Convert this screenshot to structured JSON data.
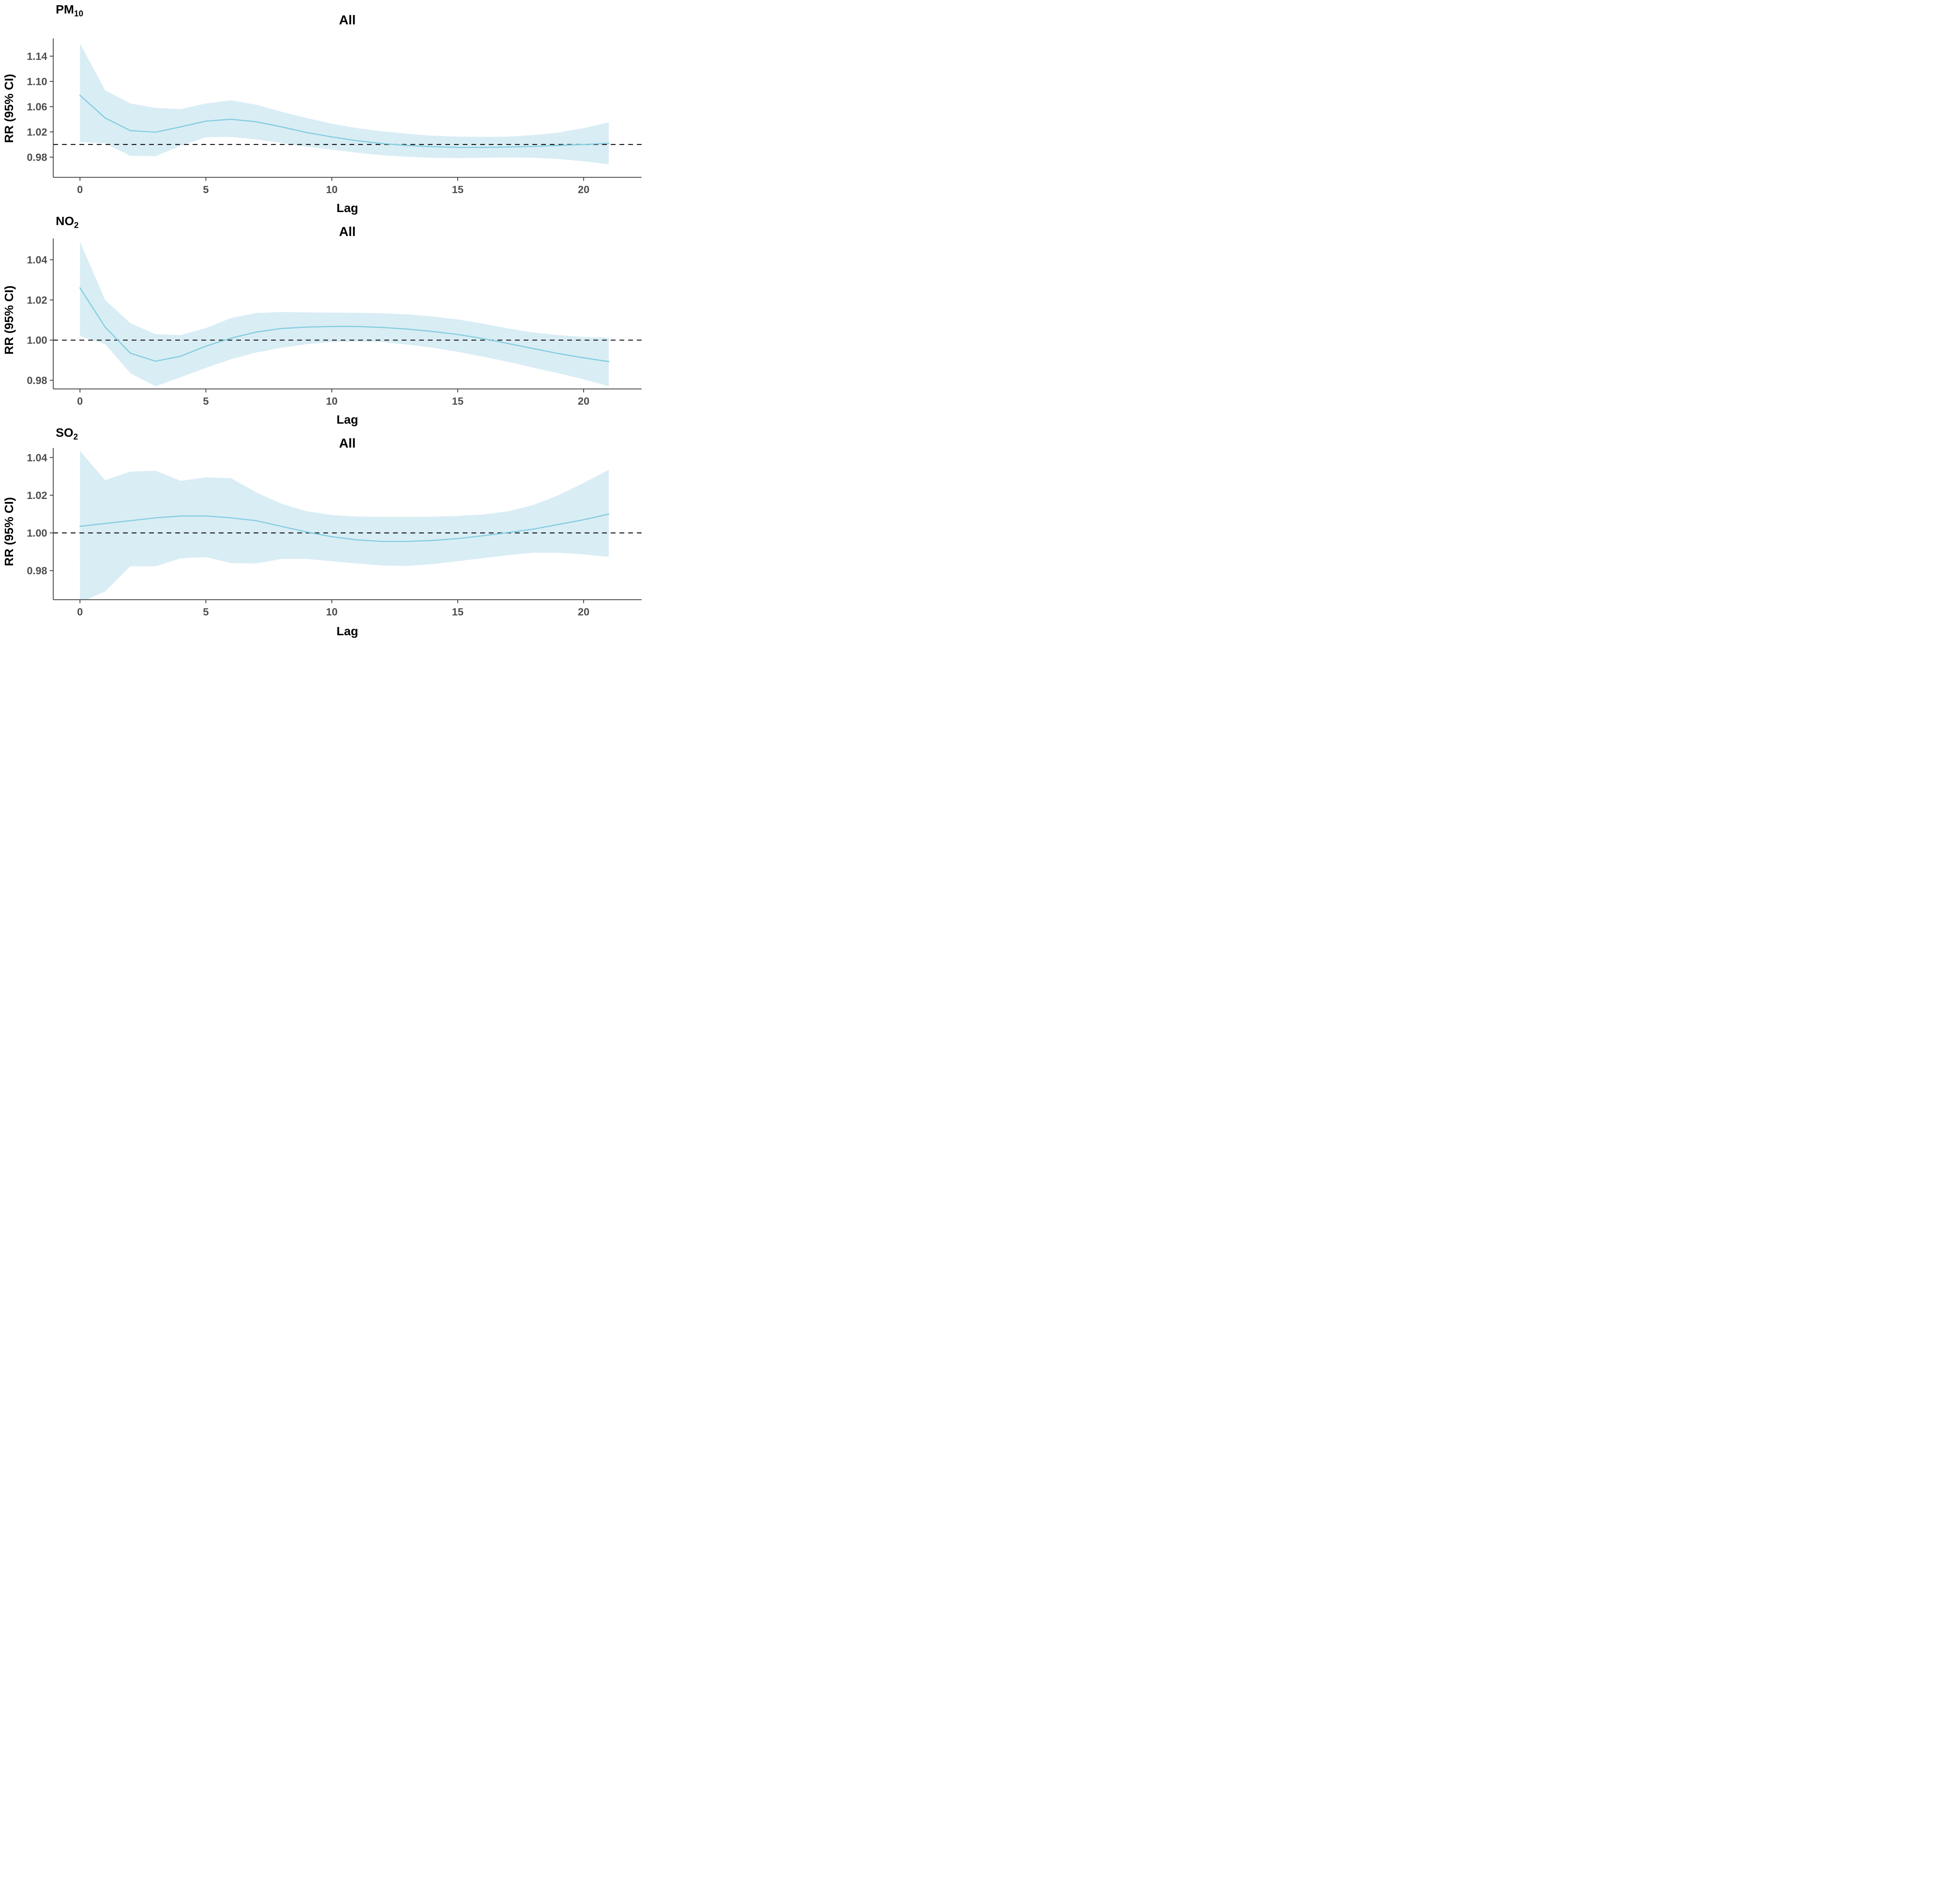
{
  "colors": {
    "line": "#82cde0",
    "ribbon": "#d9edf5",
    "axis": "#3d3d3d",
    "tick_text": "#4d4d4d",
    "title_text": "#000000",
    "ref_line": "#111111",
    "background": "#ffffff"
  },
  "chart_data": [
    {
      "type": "line",
      "pollutant": {
        "text": "PM",
        "sub": "10"
      },
      "title": "All",
      "ylabel": "RR (95% CI)",
      "xlabel": "Lag",
      "legend": "none",
      "grid": "off",
      "ref_line": 1.0,
      "xlim": [
        -1.06,
        22.3
      ],
      "ylim": [
        0.948,
        1.168
      ],
      "xticks": [
        {
          "value": 0,
          "label": "0"
        },
        {
          "value": 5,
          "label": "5"
        },
        {
          "value": 10,
          "label": "10"
        },
        {
          "value": 15,
          "label": "15"
        },
        {
          "value": 20,
          "label": "20"
        }
      ],
      "yticks": [
        {
          "value": 1.14,
          "label": "1.14"
        },
        {
          "value": 1.1,
          "label": "1.10"
        },
        {
          "value": 1.06,
          "label": "1.06"
        },
        {
          "value": 1.02,
          "label": "1.02"
        },
        {
          "value": 0.98,
          "label": "0.98"
        }
      ],
      "x": [
        0,
        1,
        2,
        3,
        4,
        5,
        6,
        7,
        8,
        9,
        10,
        11,
        12,
        13,
        14,
        15,
        16,
        17,
        18,
        19,
        20,
        21
      ],
      "rr": [
        1.078,
        1.042,
        1.022,
        1.0195,
        1.028,
        1.037,
        1.04,
        1.036,
        1.028,
        1.019,
        1.012,
        1.006,
        1.0015,
        0.9985,
        0.9965,
        0.9955,
        0.9955,
        0.996,
        0.997,
        0.9985,
        1.0,
        1.002
      ],
      "ci_upper": [
        1.16,
        1.086,
        1.065,
        1.058,
        1.056,
        1.065,
        1.07,
        1.063,
        1.052,
        1.042,
        1.033,
        1.026,
        1.021,
        1.017,
        1.014,
        1.0125,
        1.012,
        1.0125,
        1.015,
        1.019,
        1.026,
        1.035
      ],
      "ci_lower": [
        1.004,
        1.002,
        0.982,
        0.9815,
        0.998,
        1.0115,
        1.012,
        1.008,
        1.0025,
        0.9965,
        0.992,
        0.987,
        0.983,
        0.9805,
        0.979,
        0.9785,
        0.979,
        0.9795,
        0.979,
        0.977,
        0.9735,
        0.9687
      ]
    },
    {
      "type": "line",
      "pollutant": {
        "text": "NO",
        "sub": "2"
      },
      "title": "All",
      "ylabel": "RR (95% CI)",
      "xlabel": "Lag",
      "legend": "none",
      "grid": "off",
      "ref_line": 1.0,
      "xlim": [
        -1.06,
        22.3
      ],
      "ylim": [
        0.9757,
        1.0506
      ],
      "xticks": [
        {
          "value": 0,
          "label": "0"
        },
        {
          "value": 5,
          "label": "5"
        },
        {
          "value": 10,
          "label": "10"
        },
        {
          "value": 15,
          "label": "15"
        },
        {
          "value": 20,
          "label": "20"
        }
      ],
      "yticks": [
        {
          "value": 1.04,
          "label": "1.04"
        },
        {
          "value": 1.02,
          "label": "1.02"
        },
        {
          "value": 1.0,
          "label": "1.00"
        },
        {
          "value": 0.98,
          "label": "0.98"
        }
      ],
      "x": [
        0,
        1,
        2,
        3,
        4,
        5,
        6,
        7,
        8,
        9,
        10,
        11,
        12,
        13,
        14,
        15,
        16,
        17,
        18,
        19,
        20,
        21
      ],
      "rr": [
        1.026,
        1.0065,
        0.9935,
        0.9895,
        0.992,
        0.997,
        1.001,
        1.004,
        1.0058,
        1.0065,
        1.0068,
        1.0068,
        1.0063,
        1.0055,
        1.0043,
        1.0028,
        1.0008,
        0.9983,
        0.9958,
        0.9933,
        0.9912,
        0.9893
      ],
      "ci_upper": [
        1.049,
        1.02,
        1.0085,
        1.003,
        1.0025,
        1.006,
        1.011,
        1.0135,
        1.014,
        1.0138,
        1.0137,
        1.0136,
        1.0134,
        1.0128,
        1.0118,
        1.0103,
        1.0082,
        1.0058,
        1.0038,
        1.0025,
        1.0016,
        1.0012
      ],
      "ci_lower": [
        1.002,
        0.998,
        0.9835,
        0.977,
        0.9815,
        0.9862,
        0.9905,
        0.9938,
        0.9962,
        0.998,
        0.999,
        0.9993,
        0.999,
        0.9978,
        0.9962,
        0.9942,
        0.9918,
        0.9892,
        0.9863,
        0.9835,
        0.9805,
        0.977
      ]
    },
    {
      "type": "line",
      "pollutant": {
        "text": "SO",
        "sub": "2"
      },
      "title": "All",
      "ylabel": "RR (95% CI)",
      "xlabel": "Lag",
      "legend": "none",
      "grid": "off",
      "ref_line": 1.0,
      "xlim": [
        -1.06,
        22.3
      ],
      "ylim": [
        0.9646,
        1.0451
      ],
      "xticks": [
        {
          "value": 0,
          "label": "0"
        },
        {
          "value": 5,
          "label": "5"
        },
        {
          "value": 10,
          "label": "10"
        },
        {
          "value": 15,
          "label": "15"
        },
        {
          "value": 20,
          "label": "20"
        }
      ],
      "yticks": [
        {
          "value": 1.04,
          "label": "1.04"
        },
        {
          "value": 1.02,
          "label": "1.02"
        },
        {
          "value": 1.0,
          "label": "1.00"
        },
        {
          "value": 0.98,
          "label": "0.98"
        }
      ],
      "x": [
        0,
        1,
        2,
        3,
        4,
        5,
        6,
        7,
        8,
        9,
        10,
        11,
        12,
        13,
        14,
        15,
        16,
        17,
        18,
        19,
        20,
        21
      ],
      "rr": [
        1.0035,
        1.005,
        1.0065,
        1.008,
        1.009,
        1.009,
        1.008,
        1.0065,
        1.0035,
        1.0005,
        0.998,
        0.9963,
        0.9955,
        0.9955,
        0.996,
        0.997,
        0.9985,
        1.0002,
        1.002,
        1.0045,
        1.007,
        1.01
      ],
      "ci_upper": [
        1.0435,
        1.028,
        1.0325,
        1.033,
        1.0276,
        1.0295,
        1.029,
        1.0215,
        1.0155,
        1.0115,
        1.0095,
        1.0087,
        1.0085,
        1.0085,
        1.0086,
        1.009,
        1.0098,
        1.0115,
        1.0148,
        1.02,
        1.0265,
        1.0335
      ],
      "ci_lower": [
        0.963,
        0.969,
        0.9823,
        0.9823,
        0.9865,
        0.9872,
        0.984,
        0.9838,
        0.9862,
        0.9862,
        0.985,
        0.9838,
        0.9827,
        0.9825,
        0.9835,
        0.985,
        0.9866,
        0.9882,
        0.9895,
        0.9895,
        0.9886,
        0.9873
      ]
    }
  ]
}
